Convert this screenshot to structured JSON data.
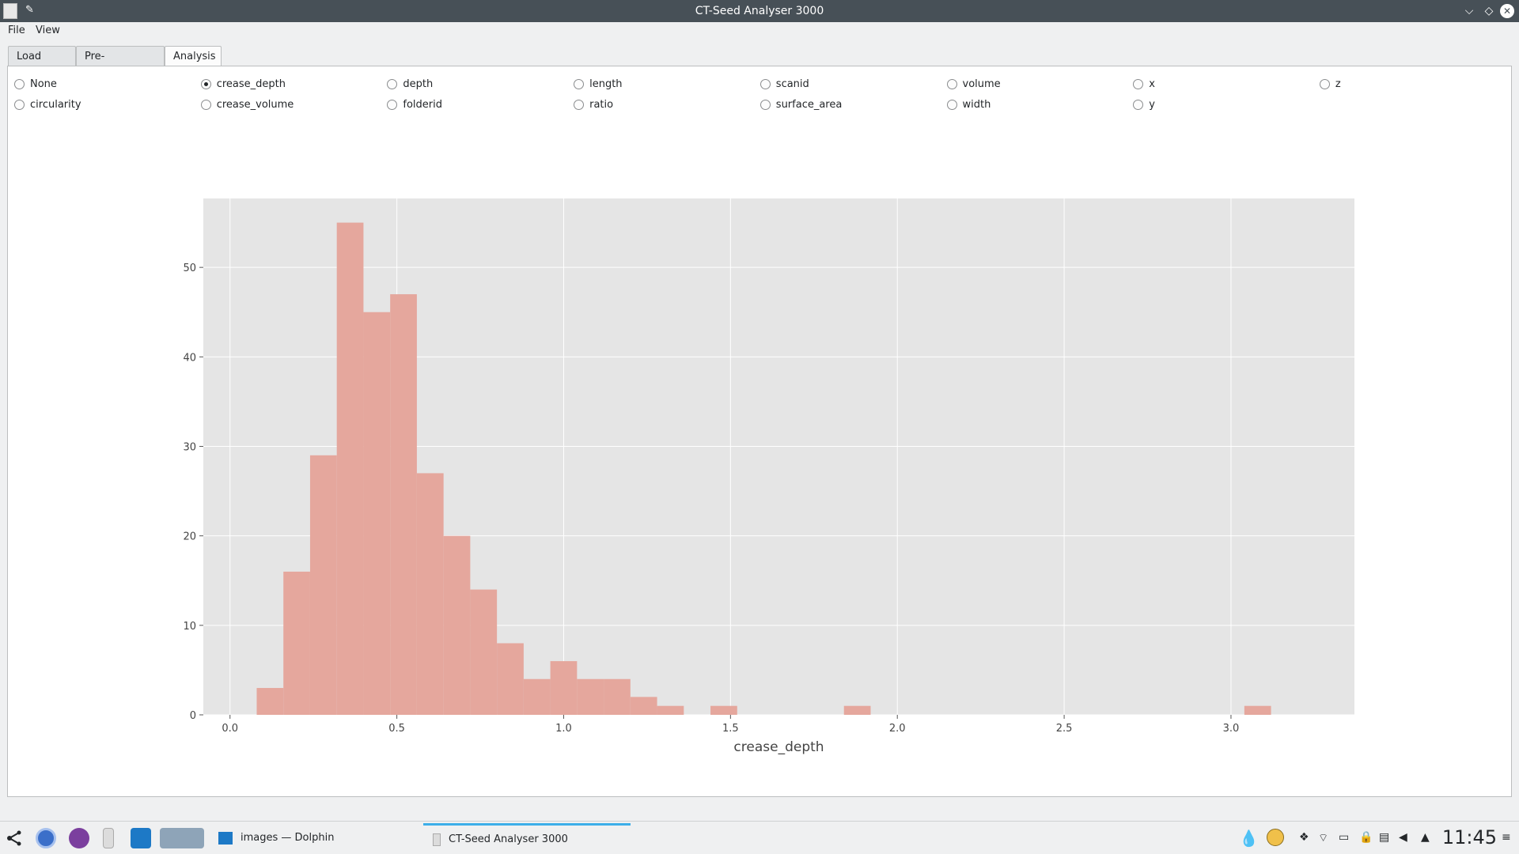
{
  "window": {
    "title": "CT-Seed Analyser 3000",
    "pin_glyph": "✎",
    "buttons": {
      "minimize": "⌵",
      "maximize": "◇",
      "close": "✕"
    }
  },
  "menu": {
    "file": "File",
    "view": "View"
  },
  "tabs": [
    {
      "label": "Load Data",
      "active": false
    },
    {
      "label": "Pre-Processing",
      "active": false
    },
    {
      "label": "Analysis",
      "active": true
    }
  ],
  "radios": [
    {
      "label": "None",
      "checked": false
    },
    {
      "label": "crease_depth",
      "checked": true
    },
    {
      "label": "depth",
      "checked": false
    },
    {
      "label": "length",
      "checked": false
    },
    {
      "label": "scanid",
      "checked": false
    },
    {
      "label": "volume",
      "checked": false
    },
    {
      "label": "x",
      "checked": false
    },
    {
      "label": "z",
      "checked": false
    },
    {
      "label": "circularity",
      "checked": false
    },
    {
      "label": "crease_volume",
      "checked": false
    },
    {
      "label": "folderid",
      "checked": false
    },
    {
      "label": "ratio",
      "checked": false
    },
    {
      "label": "surface_area",
      "checked": false
    },
    {
      "label": "width",
      "checked": false
    },
    {
      "label": "y",
      "checked": false
    }
  ],
  "chart_data": {
    "type": "bar",
    "title": "",
    "xlabel": "crease_depth",
    "ylabel": "",
    "bin_start": 0.08,
    "bin_width": 0.08,
    "values": [
      3,
      16,
      29,
      55,
      45,
      47,
      27,
      20,
      14,
      8,
      4,
      6,
      4,
      4,
      2,
      1,
      0,
      1,
      0,
      0,
      0,
      0,
      1,
      0,
      0,
      0,
      0,
      0,
      0,
      0,
      0,
      0,
      0,
      0,
      0,
      0,
      0,
      1
    ],
    "xlim": [
      -0.08,
      3.37
    ],
    "ylim": [
      0,
      57.7
    ],
    "xticks": [
      0.0,
      0.5,
      1.0,
      1.5,
      2.0,
      2.5,
      3.0
    ],
    "xtick_labels": [
      "0.0",
      "0.5",
      "1.0",
      "1.5",
      "2.0",
      "2.5",
      "3.0"
    ],
    "yticks": [
      0,
      10,
      20,
      30,
      40,
      50
    ],
    "ytick_labels": [
      "0",
      "10",
      "20",
      "30",
      "40",
      "50"
    ],
    "grid": true,
    "colors": {
      "bar": "#e5a79d",
      "background": "#e5e5e5",
      "grid": "#ffffff"
    }
  },
  "taskbar": {
    "tasks": [
      {
        "label": "images — Dolphin",
        "active": false
      },
      {
        "label": "CT-Seed Analyser 3000",
        "active": true
      }
    ],
    "clock": "11:45"
  }
}
